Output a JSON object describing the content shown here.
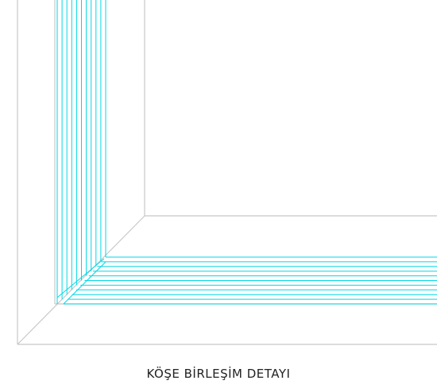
{
  "caption": "KÖŞE BİRLEŞİM DETAYI",
  "colors": {
    "frame_line": "#c8c8c8",
    "trim_line": "#00d8e6",
    "background": "#ffffff",
    "caption_text": "#222222"
  },
  "trim": {
    "vertical_line_count": 11,
    "horizontal_line_count": 11
  }
}
